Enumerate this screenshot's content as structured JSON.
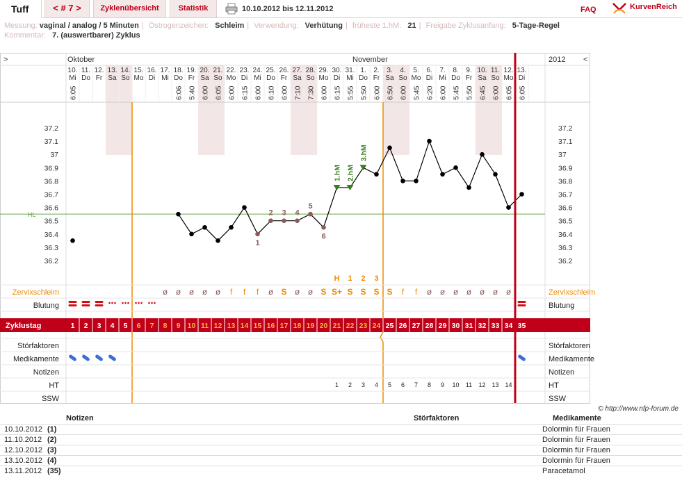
{
  "app": {
    "brand": "Tuff",
    "cycle_nav": "< # 7 >",
    "tabs": [
      "Zyklenübersicht",
      "Statistik"
    ],
    "date_range": "10.10.2012 bis 12.11.2012",
    "faq": "FAQ",
    "logo_text": "KurvenReich"
  },
  "meta": {
    "row1": [
      {
        "label": "Messung:",
        "value": "vaginal / analog / 5 Minuten"
      },
      {
        "label": "Östrogenzeichen:",
        "value": "Schleim"
      },
      {
        "label": "Verwendung:",
        "value": "Verhütung"
      },
      {
        "label": "früheste 1.hM:",
        "value": "21"
      },
      {
        "label": "Freigabe Zyklusanfang:",
        "value": "5-Tage-Regel"
      }
    ],
    "row2": [
      {
        "label": "Kommentar:",
        "value": "7.  (auswertbarer) Zyklus"
      }
    ]
  },
  "chart_data": {
    "type": "line",
    "months": [
      {
        "label": "Oktober",
        "day_index": 0
      },
      {
        "label": "November",
        "day_index": 22
      }
    ],
    "year_label": "2012",
    "nav_left": ">",
    "nav_right": "<",
    "days": [
      {
        "date": "10.",
        "wd": "Mi",
        "time": "6:05",
        "temp": 36.35,
        "cd": 1,
        "bleed": "heavy",
        "med": true,
        "note": "1",
        "ht": "",
        "tag": "",
        "mucus": "",
        "mucus_tag": ""
      },
      {
        "date": "11.",
        "wd": "Do",
        "time": "",
        "temp": null,
        "cd": 2,
        "bleed": "heavy",
        "med": true,
        "ht": "",
        "tag": "",
        "mucus": "",
        "mucus_tag": ""
      },
      {
        "date": "12.",
        "wd": "Fr",
        "time": "",
        "temp": null,
        "cd": 3,
        "bleed": "medium",
        "med": true,
        "ht": "",
        "tag": "",
        "mucus": "",
        "mucus_tag": ""
      },
      {
        "date": "13.",
        "wd": "Sa",
        "time": "",
        "temp": null,
        "cd": 4,
        "bleed": "light",
        "med": true,
        "ht": "",
        "tag": "",
        "mucus": "",
        "mucus_tag": "",
        "we": true
      },
      {
        "date": "14.",
        "wd": "So",
        "time": "",
        "temp": null,
        "cd": 5,
        "bleed": "light",
        "med": false,
        "ht": "",
        "tag": "",
        "mucus": "",
        "mucus_tag": "",
        "we": true
      },
      {
        "date": "15.",
        "wd": "Mo",
        "time": "",
        "temp": null,
        "cd": 6,
        "bleed": "light",
        "med": false,
        "ht": "",
        "tag": "",
        "mucus": "",
        "mucus_tag": ""
      },
      {
        "date": "16.",
        "wd": "Di",
        "time": "",
        "temp": null,
        "cd": 7,
        "bleed": "light",
        "med": false,
        "ht": "",
        "tag": "",
        "mucus": "",
        "mucus_tag": ""
      },
      {
        "date": "17.",
        "wd": "Mi",
        "time": "",
        "temp": null,
        "cd": 8,
        "bleed": "",
        "med": false,
        "ht": "",
        "tag": "",
        "mucus": "ø",
        "mucus_tag": ""
      },
      {
        "date": "18.",
        "wd": "Do",
        "time": "6:06",
        "temp": 36.55,
        "cd": 9,
        "bleed": "",
        "med": false,
        "ht": "",
        "tag": "",
        "mucus": "ø",
        "mucus_tag": ""
      },
      {
        "date": "19.",
        "wd": "Fr",
        "time": "5:40",
        "temp": 36.4,
        "cd": 10,
        "bleed": "",
        "med": false,
        "ht": "",
        "tag": "",
        "mucus": "ø",
        "mucus_tag": ""
      },
      {
        "date": "20.",
        "wd": "Sa",
        "time": "6:00",
        "temp": 36.45,
        "cd": 11,
        "bleed": "",
        "med": false,
        "ht": "",
        "tag": "",
        "mucus": "ø",
        "mucus_tag": "",
        "we": true
      },
      {
        "date": "21.",
        "wd": "So",
        "time": "6:05",
        "temp": 36.35,
        "cd": 12,
        "bleed": "",
        "med": false,
        "ht": "",
        "tag": "",
        "mucus": "ø",
        "mucus_tag": "",
        "we": true
      },
      {
        "date": "22.",
        "wd": "Mo",
        "time": "6:00",
        "temp": 36.45,
        "cd": 13,
        "bleed": "",
        "med": false,
        "ht": "",
        "tag": "",
        "mucus": "f",
        "mucus_tag": ""
      },
      {
        "date": "23.",
        "wd": "Di",
        "time": "6:15",
        "temp": 36.6,
        "cd": 14,
        "bleed": "",
        "med": false,
        "ht": "",
        "tag": "",
        "mucus": "f",
        "mucus_tag": ""
      },
      {
        "date": "24.",
        "wd": "Mi",
        "time": "6:00",
        "temp": 36.4,
        "cd": 15,
        "bleed": "",
        "med": false,
        "ht": "",
        "tag": "1",
        "mucus": "f",
        "mucus_tag": ""
      },
      {
        "date": "25.",
        "wd": "Do",
        "time": "6:10",
        "temp": 36.5,
        "cd": 16,
        "bleed": "",
        "med": false,
        "ht": "",
        "tag": "2",
        "mucus": "ø",
        "mucus_tag": ""
      },
      {
        "date": "26.",
        "wd": "Fr",
        "time": "6:00",
        "temp": 36.5,
        "cd": 17,
        "bleed": "",
        "med": false,
        "ht": "",
        "tag": "3",
        "mucus": "S",
        "mucus_tag": ""
      },
      {
        "date": "27.",
        "wd": "Sa",
        "time": "7:10",
        "temp": 36.5,
        "cd": 18,
        "bleed": "",
        "med": false,
        "ht": "",
        "tag": "4",
        "mucus": "ø",
        "mucus_tag": "",
        "we": true
      },
      {
        "date": "28.",
        "wd": "So",
        "time": "7:30",
        "temp": 36.55,
        "cd": 19,
        "bleed": "",
        "med": false,
        "ht": "",
        "tag": "5",
        "mucus": "ø",
        "mucus_tag": "",
        "we": true
      },
      {
        "date": "29.",
        "wd": "Mo",
        "time": "6:00",
        "temp": 36.45,
        "cd": 20,
        "bleed": "",
        "med": false,
        "ht": "",
        "tag": "6",
        "mucus": "S",
        "mucus_tag": ""
      },
      {
        "date": "30.",
        "wd": "Di",
        "time": "6:15",
        "temp": 36.75,
        "cd": 21,
        "bleed": "",
        "med": false,
        "ht": "1",
        "tag": "1.hM",
        "mucus": "S+",
        "mucus_tag": "H"
      },
      {
        "date": "31.",
        "wd": "Mi",
        "time": "5:55",
        "temp": 36.75,
        "cd": 22,
        "bleed": "",
        "med": false,
        "ht": "2",
        "tag": "2.hM",
        "mucus": "S",
        "mucus_tag": "1"
      },
      {
        "date": "1.",
        "wd": "Do",
        "time": "5:50",
        "temp": 36.9,
        "cd": 23,
        "bleed": "",
        "med": false,
        "ht": "3",
        "tag": "3.hM",
        "mucus": "S",
        "mucus_tag": "2"
      },
      {
        "date": "2.",
        "wd": "Fr",
        "time": "6:00",
        "temp": 36.85,
        "cd": 24,
        "bleed": "",
        "med": false,
        "ht": "4",
        "tag": "",
        "mucus": "S",
        "mucus_tag": "3"
      },
      {
        "date": "3.",
        "wd": "Sa",
        "time": "6:50",
        "temp": 37.05,
        "cd": 25,
        "bleed": "",
        "med": false,
        "ht": "5",
        "tag": "",
        "mucus": "S",
        "mucus_tag": "",
        "we": true
      },
      {
        "date": "4.",
        "wd": "So",
        "time": "6:00",
        "temp": 36.8,
        "cd": 26,
        "bleed": "",
        "med": false,
        "ht": "6",
        "tag": "",
        "mucus": "f",
        "mucus_tag": "",
        "we": true
      },
      {
        "date": "5.",
        "wd": "Mo",
        "time": "5:45",
        "temp": 36.8,
        "cd": 27,
        "bleed": "",
        "med": false,
        "ht": "7",
        "tag": "",
        "mucus": "f",
        "mucus_tag": ""
      },
      {
        "date": "6.",
        "wd": "Di",
        "time": "6:20",
        "temp": 37.1,
        "cd": 28,
        "bleed": "",
        "med": false,
        "ht": "8",
        "tag": "",
        "mucus": "ø",
        "mucus_tag": ""
      },
      {
        "date": "7.",
        "wd": "Mi",
        "time": "6:00",
        "temp": 36.85,
        "cd": 29,
        "bleed": "",
        "med": false,
        "ht": "9",
        "tag": "",
        "mucus": "ø",
        "mucus_tag": ""
      },
      {
        "date": "8.",
        "wd": "Do",
        "time": "5:45",
        "temp": 36.9,
        "cd": 30,
        "bleed": "",
        "med": false,
        "ht": "10",
        "tag": "",
        "mucus": "ø",
        "mucus_tag": ""
      },
      {
        "date": "9.",
        "wd": "Fr",
        "time": "5:50",
        "temp": 36.75,
        "cd": 31,
        "bleed": "",
        "med": false,
        "ht": "11",
        "tag": "",
        "mucus": "ø",
        "mucus_tag": ""
      },
      {
        "date": "10.",
        "wd": "Sa",
        "time": "6:45",
        "temp": 37.0,
        "cd": 32,
        "bleed": "",
        "med": false,
        "ht": "12",
        "tag": "",
        "mucus": "ø",
        "mucus_tag": "",
        "we": true
      },
      {
        "date": "11.",
        "wd": "So",
        "time": "6:00",
        "temp": 36.85,
        "cd": 33,
        "bleed": "",
        "med": false,
        "ht": "13",
        "tag": "",
        "mucus": "ø",
        "mucus_tag": "",
        "we": true
      },
      {
        "date": "12.",
        "wd": "Mo",
        "time": "6:05",
        "temp": 36.6,
        "cd": 34,
        "bleed": "",
        "med": false,
        "ht": "14",
        "tag": "",
        "mucus": "ø",
        "mucus_tag": ""
      },
      {
        "date": "13.",
        "wd": "Di",
        "time": "6:05",
        "temp": 36.7,
        "cd": 35,
        "bleed": "heavy",
        "med": true,
        "ht": "",
        "tag": "",
        "mucus": "",
        "mucus_tag": ""
      }
    ],
    "y_ticks": [
      "37.2",
      "37.1",
      "37",
      "36.9",
      "36.8",
      "36.7",
      "36.6",
      "36.5",
      "36.4",
      "36.3",
      "36.2"
    ],
    "ylim": [
      36.2,
      37.2
    ],
    "hl_value": 36.55,
    "hl_label": "HL",
    "ovulation_line_after_day": 5,
    "fertile_end_after_day": 24,
    "cycle_end_after_day": 34,
    "row_labels": {
      "mucus": "Zervixschleim",
      "bleeding": "Blutung",
      "cycle_day": "Zyklustag",
      "factors": "Störfaktoren",
      "meds": "Medikamente",
      "notes": "Notizen",
      "ht": "HT",
      "ssw": "SSW"
    },
    "colors": {
      "brand_red": "#c00018",
      "orange": "#f08a00",
      "green": "#3a7d1e",
      "hl_green": "#6aa84f",
      "purple_dot": "#8b5a5a",
      "pill": "#3a6fd8",
      "weekend": "#f3e6e6"
    }
  },
  "credit": "© http://www.nfp-forum.de",
  "notes_table": {
    "headers": [
      "Notizen",
      "Störfaktoren",
      "Medikamente"
    ],
    "rows": [
      {
        "date": "10.10.2012",
        "tag": "(1)",
        "factors": "",
        "meds": "Dolormin für Frauen"
      },
      {
        "date": "11.10.2012",
        "tag": "(2)",
        "factors": "",
        "meds": "Dolormin für Frauen"
      },
      {
        "date": "12.10.2012",
        "tag": "(3)",
        "factors": "",
        "meds": "Dolormin für Frauen"
      },
      {
        "date": "13.10.2012",
        "tag": "(4)",
        "factors": "",
        "meds": "Dolormin für Frauen"
      },
      {
        "date": "13.11.2012",
        "tag": "(35)",
        "factors": "",
        "meds": "Paracetamol"
      }
    ]
  }
}
